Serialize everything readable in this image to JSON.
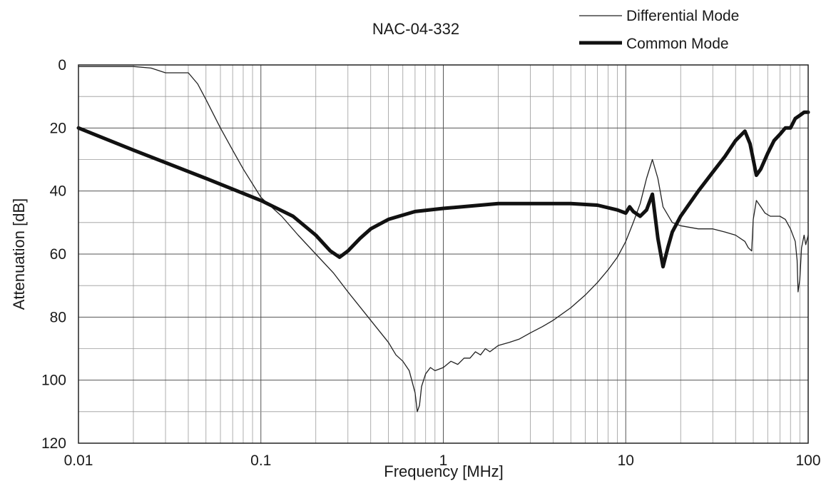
{
  "chart_data": {
    "type": "line",
    "title": "NAC-04-332",
    "xlabel": "Frequency [MHz]",
    "ylabel": "Attenuation [dB]",
    "x_scale": "log",
    "xlim": [
      0.01,
      100
    ],
    "ylim": [
      0,
      120
    ],
    "y_inverted": true,
    "grid": true,
    "legend_position": "top-right",
    "x_ticks": [
      0.01,
      0.1,
      1,
      10,
      100
    ],
    "x_tick_labels": [
      "0.01",
      "0.1",
      "1",
      "10",
      "100"
    ],
    "y_ticks": [
      0,
      20,
      40,
      60,
      80,
      100,
      120
    ],
    "y_tick_labels": [
      "0",
      "20",
      "40",
      "60",
      "80",
      "100",
      "120"
    ],
    "series": [
      {
        "name": "Differential Mode",
        "style": "thin",
        "color": "#222222",
        "x": [
          0.01,
          0.015,
          0.02,
          0.025,
          0.03,
          0.035,
          0.04,
          0.045,
          0.05,
          0.06,
          0.07,
          0.08,
          0.1,
          0.13,
          0.16,
          0.2,
          0.25,
          0.3,
          0.4,
          0.5,
          0.55,
          0.6,
          0.65,
          0.7,
          0.72,
          0.74,
          0.76,
          0.8,
          0.85,
          0.9,
          1.0,
          1.1,
          1.2,
          1.3,
          1.4,
          1.5,
          1.6,
          1.7,
          1.8,
          2.0,
          2.3,
          2.6,
          3.0,
          3.5,
          4.0,
          5.0,
          6.0,
          7.0,
          8.0,
          9.0,
          10.0,
          11.0,
          12.0,
          13.0,
          14.0,
          15.0,
          16.0,
          18.0,
          20.0,
          25.0,
          30.0,
          35.0,
          40.0,
          45.0,
          47.0,
          49.0,
          50.0,
          52.0,
          55.0,
          58.0,
          62.0,
          70.0,
          75.0,
          80.0,
          85.0,
          87.0,
          88.0,
          90.0,
          92.0,
          95.0,
          97.0,
          100.0
        ],
        "values": [
          0.5,
          0.5,
          0.5,
          1.0,
          2.5,
          2.5,
          2.5,
          6.0,
          11.0,
          20.0,
          27.0,
          33.0,
          42.0,
          48.0,
          54.0,
          60.0,
          66.0,
          72.0,
          81.0,
          88.0,
          92.0,
          94.0,
          97.0,
          104.0,
          110.0,
          108.0,
          102.0,
          98.0,
          96.0,
          97.0,
          96.0,
          94.0,
          95.0,
          93.0,
          93.0,
          91.0,
          92.0,
          90.0,
          91.0,
          89.0,
          88.0,
          87.0,
          85.0,
          83.0,
          81.0,
          77.0,
          73.0,
          69.0,
          65.0,
          61.0,
          56.0,
          50.0,
          44.0,
          36.0,
          30.0,
          36.0,
          45.0,
          50.0,
          51.0,
          52.0,
          52.0,
          53.0,
          54.0,
          56.0,
          58.0,
          59.0,
          49.0,
          43.0,
          45.0,
          47.0,
          48.0,
          48.0,
          49.0,
          52.0,
          56.0,
          62.0,
          72.0,
          68.0,
          58.0,
          54.0,
          57.0,
          54.0
        ]
      },
      {
        "name": "Common Mode",
        "style": "thick",
        "color": "#111111",
        "x": [
          0.01,
          0.02,
          0.05,
          0.1,
          0.15,
          0.2,
          0.24,
          0.27,
          0.3,
          0.35,
          0.4,
          0.5,
          0.7,
          1.0,
          2.0,
          3.0,
          5.0,
          7.0,
          9.0,
          10.0,
          10.5,
          11.0,
          12.0,
          13.0,
          14.0,
          15.0,
          16.0,
          17.0,
          18.0,
          20.0,
          25.0,
          30.0,
          35.0,
          40.0,
          45.0,
          48.0,
          50.0,
          52.0,
          55.0,
          60.0,
          65.0,
          70.0,
          75.0,
          80.0,
          85.0,
          90.0,
          95.0,
          100.0
        ],
        "values": [
          20.0,
          27.0,
          36.0,
          43.0,
          48.0,
          54.0,
          59.0,
          61.0,
          59.0,
          55.0,
          52.0,
          49.0,
          46.5,
          45.5,
          44.0,
          44.0,
          44.0,
          44.5,
          46.0,
          47.0,
          45.0,
          46.5,
          48.0,
          46.0,
          41.0,
          55.0,
          64.0,
          58.0,
          53.0,
          48.0,
          40.0,
          34.0,
          29.0,
          24.0,
          21.0,
          25.0,
          30.0,
          35.0,
          33.0,
          28.0,
          24.0,
          22.0,
          20.0,
          20.0,
          17.0,
          16.0,
          15.0,
          15.0
        ]
      }
    ]
  }
}
